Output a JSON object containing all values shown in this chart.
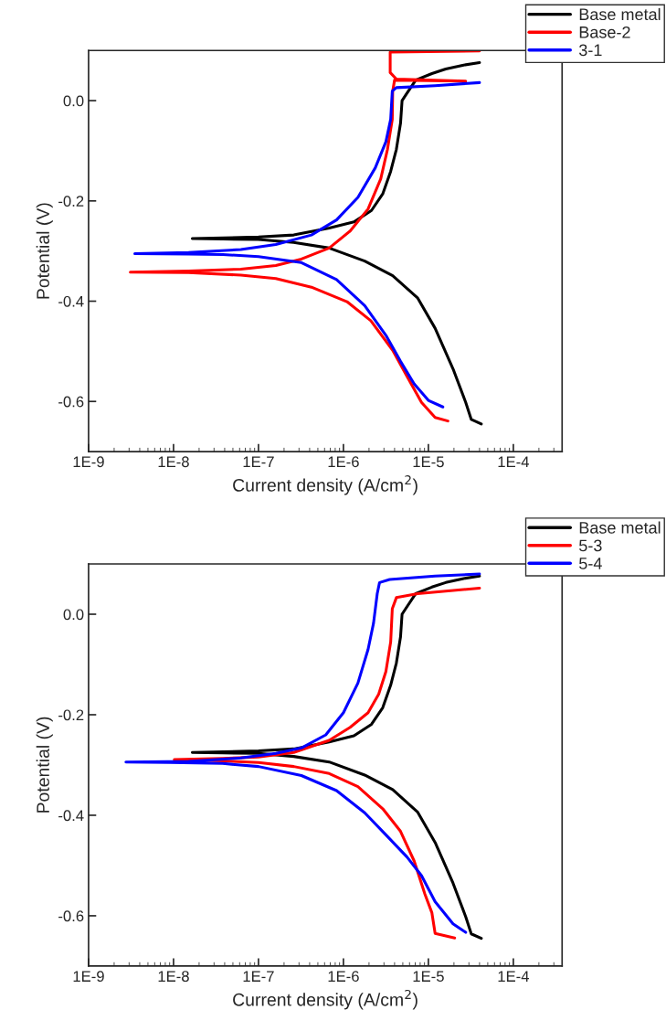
{
  "chart_data": [
    {
      "type": "line",
      "xlabel": "Current density (A/cm$^{2}$)",
      "ylabel": "Potential (V)",
      "log": "x",
      "xlim": [
        1e-09,
        0.000375
      ],
      "ylim": [
        -0.7,
        0.1
      ],
      "xticks": [
        {
          "value": 1e-09,
          "label": "1E-9"
        },
        {
          "value": 1e-08,
          "label": "1E-8"
        },
        {
          "value": 1e-07,
          "label": "1E-7"
        },
        {
          "value": 1e-06,
          "label": "1E-6"
        },
        {
          "value": 1e-05,
          "label": "1E-5"
        },
        {
          "value": 0.0001,
          "label": "1E-4"
        }
      ],
      "yticks": [
        {
          "value": 0,
          "label": "0.0"
        },
        {
          "value": -0.2,
          "label": "-0.2"
        },
        {
          "value": -0.4,
          "label": "-0.4"
        },
        {
          "value": -0.6,
          "label": "-0.6"
        }
      ],
      "legend": "top right",
      "grid": false,
      "line_style": "solid",
      "marker": "none",
      "series": [
        {
          "name": "Base metal",
          "color": "#000000",
          "x": [
            4.2e-05,
            3.2e-05,
            2.75e-05,
            1.95e-05,
            1.2e-05,
            7.5e-06,
            3.8e-06,
            1.78e-06,
            6.8e-07,
            2.6e-07,
            1e-07,
            3.8e-08,
            1.66e-08,
            1e-07,
            2.6e-07,
            6.8e-07,
            1.33e-06,
            2.14e-06,
            2.9e-06,
            3.6e-06,
            4.2e-06,
            4.7e-06,
            4.9e-06,
            5.4e-06,
            7.1e-06,
            1.1e-05,
            1.6e-05,
            2.6e-05,
            4e-05
          ],
          "values": [
            -0.645,
            -0.636,
            -0.602,
            -0.535,
            -0.454,
            -0.394,
            -0.349,
            -0.32,
            -0.294,
            -0.283,
            -0.277,
            -0.276,
            -0.275,
            -0.272,
            -0.268,
            -0.254,
            -0.242,
            -0.219,
            -0.186,
            -0.141,
            -0.097,
            -0.045,
            0.0,
            0.011,
            0.041,
            0.054,
            0.063,
            0.071,
            0.076
          ]
        },
        {
          "name": "Base-2",
          "color": "#ff0000",
          "x": [
            1.7e-05,
            1.2e-05,
            8.3e-06,
            5.6e-06,
            3.8e-06,
            2.1e-06,
            1.1e-06,
            4.2e-07,
            1.6e-07,
            6.2e-08,
            1.5e-08,
            3.1e-09,
            1.5e-08,
            6.2e-08,
            1.6e-07,
            3.2e-07,
            6.8e-07,
            1.2e-06,
            1.95e-06,
            2.75e-06,
            3.3e-06,
            3.76e-06,
            3.8e-06,
            4e-06,
            2.75e-05,
            4.2e-06,
            3.55e-06,
            3.55e-06,
            4e-05
          ],
          "values": [
            -0.639,
            -0.632,
            -0.602,
            -0.55,
            -0.498,
            -0.439,
            -0.401,
            -0.372,
            -0.355,
            -0.348,
            -0.343,
            -0.342,
            -0.34,
            -0.336,
            -0.329,
            -0.316,
            -0.294,
            -0.26,
            -0.216,
            -0.156,
            -0.097,
            -0.037,
            0.019,
            0.041,
            0.039,
            0.043,
            0.056,
            0.097,
            0.099
          ]
        },
        {
          "name": "3-1",
          "color": "#0000ff",
          "x": [
            1.48e-05,
            1e-05,
            6.8e-06,
            4.7e-06,
            3.16e-06,
            1.78e-06,
            8.3e-07,
            3.2e-07,
            1e-07,
            3.8e-08,
            1.5e-08,
            3.5e-09,
            1.5e-08,
            6.2e-08,
            1.6e-07,
            4.2e-07,
            8.3e-07,
            1.48e-06,
            2.37e-06,
            3.16e-06,
            3.6e-06,
            3.76e-06,
            4.2e-06,
            1.2e-05,
            4e-05
          ],
          "values": [
            -0.611,
            -0.598,
            -0.565,
            -0.52,
            -0.468,
            -0.409,
            -0.357,
            -0.323,
            -0.311,
            -0.307,
            -0.306,
            -0.305,
            -0.303,
            -0.297,
            -0.287,
            -0.268,
            -0.238,
            -0.193,
            -0.134,
            -0.082,
            -0.037,
            0.019,
            0.026,
            0.03,
            0.036
          ]
        }
      ]
    },
    {
      "type": "line",
      "xlabel": "Current density (A/cm$^{2}$)",
      "ylabel": "Potential (V)",
      "log": "x",
      "xlim": [
        1e-09,
        0.000375
      ],
      "ylim": [
        -0.7,
        0.1
      ],
      "xticks": [
        {
          "value": 1e-09,
          "label": "1E-9"
        },
        {
          "value": 1e-08,
          "label": "1E-8"
        },
        {
          "value": 1e-07,
          "label": "1E-7"
        },
        {
          "value": 1e-06,
          "label": "1E-6"
        },
        {
          "value": 1e-05,
          "label": "1E-5"
        },
        {
          "value": 0.0001,
          "label": "1E-4"
        }
      ],
      "yticks": [
        {
          "value": 0,
          "label": "0.0"
        },
        {
          "value": -0.2,
          "label": "-0.2"
        },
        {
          "value": -0.4,
          "label": "-0.4"
        },
        {
          "value": -0.6,
          "label": "-0.6"
        }
      ],
      "legend": "top right",
      "grid": false,
      "line_style": "solid",
      "marker": "none",
      "series": [
        {
          "name": "Base metal",
          "color": "#000000",
          "x": [
            4.2e-05,
            3.2e-05,
            2.75e-05,
            1.95e-05,
            1.2e-05,
            7.5e-06,
            3.8e-06,
            1.78e-06,
            6.8e-07,
            2.6e-07,
            1e-07,
            3.8e-08,
            1.66e-08,
            1e-07,
            2.6e-07,
            6.8e-07,
            1.33e-06,
            2.14e-06,
            2.9e-06,
            3.6e-06,
            4.2e-06,
            4.7e-06,
            4.9e-06,
            5.4e-06,
            7.1e-06,
            1.1e-05,
            1.6e-05,
            2.6e-05,
            4e-05
          ],
          "values": [
            -0.645,
            -0.636,
            -0.602,
            -0.535,
            -0.454,
            -0.394,
            -0.349,
            -0.32,
            -0.294,
            -0.283,
            -0.277,
            -0.276,
            -0.275,
            -0.272,
            -0.268,
            -0.254,
            -0.242,
            -0.219,
            -0.186,
            -0.141,
            -0.097,
            -0.045,
            0.0,
            0.011,
            0.041,
            0.054,
            0.063,
            0.071,
            0.076
          ]
        },
        {
          "name": "5-3",
          "color": "#ff0000",
          "x": [
            2.04e-05,
            1.2e-05,
            1.1e-05,
            9.1e-06,
            6.8e-06,
            4.7e-06,
            2.9e-06,
            1.48e-06,
            6.8e-07,
            2.6e-07,
            1e-07,
            3.8e-08,
            1.02e-08,
            3.8e-08,
            1e-07,
            2.6e-07,
            6.8e-07,
            1.2e-06,
            1.95e-06,
            2.6e-06,
            3.16e-06,
            3.6e-06,
            3.76e-06,
            4.2e-06,
            7.5e-06,
            4e-05
          ],
          "values": [
            -0.644,
            -0.635,
            -0.594,
            -0.557,
            -0.491,
            -0.432,
            -0.387,
            -0.343,
            -0.317,
            -0.303,
            -0.295,
            -0.292,
            -0.289,
            -0.287,
            -0.284,
            -0.275,
            -0.251,
            -0.225,
            -0.196,
            -0.159,
            -0.114,
            -0.055,
            0.011,
            0.033,
            0.041,
            0.052
          ]
        },
        {
          "name": "5-4",
          "color": "#0000ff",
          "x": [
            2.75e-05,
            1.95e-05,
            1.2e-05,
            8.3e-06,
            5.6e-06,
            3.16e-06,
            1.78e-06,
            8.3e-07,
            3.2e-07,
            1e-07,
            3.8e-08,
            9.1e-09,
            2.75e-09,
            1.5e-08,
            6.2e-08,
            1.6e-07,
            3.2e-07,
            6.2e-07,
            1e-06,
            1.48e-06,
            1.95e-06,
            2.26e-06,
            2.5e-06,
            2.66e-06,
            3.5e-06,
            1.2e-05,
            4e-05
          ],
          "values": [
            -0.633,
            -0.616,
            -0.572,
            -0.52,
            -0.483,
            -0.439,
            -0.395,
            -0.351,
            -0.321,
            -0.303,
            -0.297,
            -0.295,
            -0.294,
            -0.293,
            -0.286,
            -0.277,
            -0.266,
            -0.24,
            -0.196,
            -0.137,
            -0.07,
            -0.018,
            0.041,
            0.063,
            0.069,
            0.076,
            0.08
          ]
        }
      ]
    }
  ]
}
